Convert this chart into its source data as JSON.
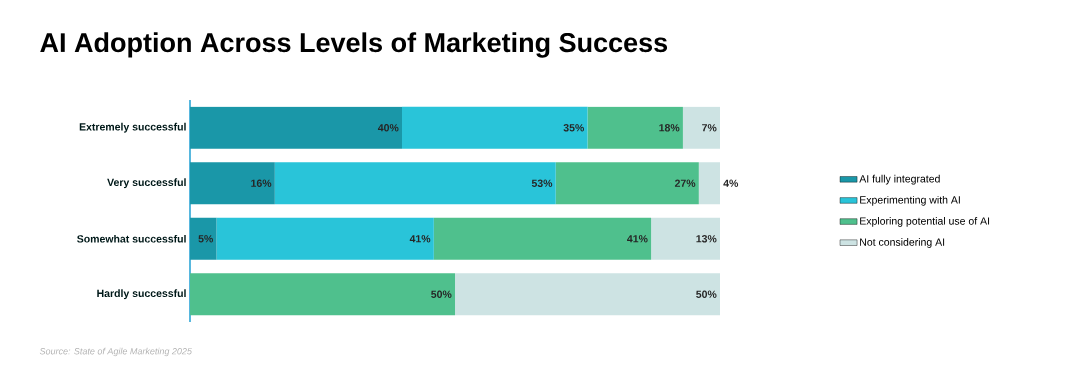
{
  "chart_data": {
    "type": "bar",
    "orientation": "horizontal",
    "stacked": true,
    "title": "AI Adoption Across Levels of Marketing Success",
    "categories": [
      "Extremely successful",
      "Very successful",
      "Somewhat successful",
      "Hardly successful"
    ],
    "tick_labels": "y",
    "legend": "right",
    "series": [
      {
        "name": "AI fully integrated",
        "color": "#1a97a8",
        "values": [
          40,
          16,
          5,
          0
        ],
        "value_labels": [
          "40%",
          "16%",
          "5%",
          null
        ]
      },
      {
        "name": "Experimenting with AI",
        "color": "#29c4d9",
        "values": [
          35,
          53,
          41,
          0
        ],
        "value_labels": [
          "35%",
          "53%",
          "41%",
          null
        ]
      },
      {
        "name": "Exploring potential use of AI",
        "color": "#4fc08d",
        "values": [
          18,
          27,
          41,
          50
        ],
        "value_labels": [
          "18%",
          "27%",
          "41%",
          "50%"
        ]
      },
      {
        "name": "Not considering AI",
        "color": "#cde3e3",
        "values": [
          7,
          4,
          13,
          50
        ],
        "value_labels": [
          "7%",
          "4%",
          "13%",
          "50%"
        ]
      }
    ],
    "annotations": [
      "Source: State of Agile Marketing 2025"
    ]
  }
}
